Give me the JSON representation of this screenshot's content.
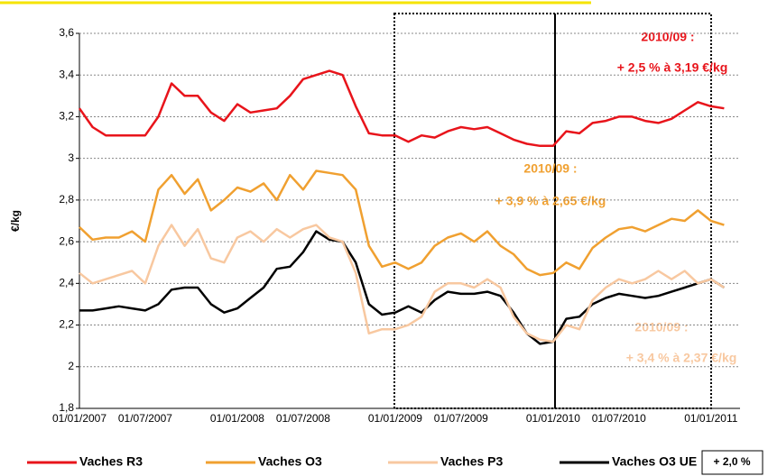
{
  "chart_data": {
    "type": "line",
    "ylabel": "€/kg",
    "categories": [
      "01/01/2007",
      null,
      null,
      null,
      null,
      "01/07/2007",
      null,
      null,
      null,
      null,
      null,
      null,
      "01/01/2008",
      null,
      null,
      null,
      null,
      "01/07/2008",
      null,
      null,
      null,
      null,
      null,
      null,
      "01/01/2009",
      null,
      null,
      null,
      null,
      "01/07/2009",
      null,
      null,
      null,
      null,
      null,
      null,
      "01/01/2010",
      null,
      null,
      null,
      null,
      "01/07/2010",
      null,
      null,
      null,
      null,
      null,
      null,
      "01/01/2011",
      null
    ],
    "series": [
      {
        "name": "Vaches R3",
        "color": "#e8141b",
        "values": [
          3.24,
          3.15,
          3.11,
          3.11,
          3.11,
          3.11,
          3.2,
          3.36,
          3.3,
          3.3,
          3.22,
          3.18,
          3.26,
          3.22,
          3.23,
          3.24,
          3.3,
          3.38,
          3.4,
          3.42,
          3.4,
          3.25,
          3.12,
          3.11,
          3.11,
          3.08,
          3.11,
          3.1,
          3.13,
          3.15,
          3.14,
          3.15,
          3.12,
          3.09,
          3.07,
          3.06,
          3.06,
          3.13,
          3.12,
          3.17,
          3.18,
          3.2,
          3.2,
          3.18,
          3.17,
          3.19,
          3.23,
          3.27,
          3.25,
          3.24
        ]
      },
      {
        "name": "Vaches O3",
        "color": "#f0a030",
        "values": [
          2.67,
          2.61,
          2.62,
          2.62,
          2.65,
          2.6,
          2.85,
          2.92,
          2.83,
          2.9,
          2.75,
          2.8,
          2.86,
          2.84,
          2.88,
          2.8,
          2.92,
          2.85,
          2.94,
          2.93,
          2.92,
          2.85,
          2.58,
          2.48,
          2.5,
          2.47,
          2.5,
          2.58,
          2.62,
          2.64,
          2.6,
          2.65,
          2.58,
          2.54,
          2.47,
          2.44,
          2.45,
          2.5,
          2.47,
          2.57,
          2.62,
          2.66,
          2.67,
          2.65,
          2.68,
          2.71,
          2.7,
          2.75,
          2.7,
          2.68
        ]
      },
      {
        "name": "Vaches P3",
        "color": "#f8c8a0",
        "values": [
          2.45,
          2.4,
          2.42,
          2.44,
          2.46,
          2.4,
          2.58,
          2.68,
          2.58,
          2.66,
          2.52,
          2.5,
          2.62,
          2.65,
          2.6,
          2.66,
          2.62,
          2.66,
          2.68,
          2.62,
          2.6,
          2.45,
          2.16,
          2.18,
          2.18,
          2.2,
          2.24,
          2.36,
          2.4,
          2.4,
          2.38,
          2.42,
          2.38,
          2.24,
          2.16,
          2.13,
          2.12,
          2.2,
          2.18,
          2.32,
          2.38,
          2.42,
          2.4,
          2.42,
          2.46,
          2.42,
          2.46,
          2.4,
          2.42,
          2.38
        ]
      },
      {
        "name": "Vaches O3 UE",
        "color": "#000000",
        "values": [
          2.27,
          2.27,
          2.28,
          2.29,
          2.28,
          2.27,
          2.3,
          2.37,
          2.38,
          2.38,
          2.3,
          2.26,
          2.28,
          2.33,
          2.38,
          2.47,
          2.48,
          2.55,
          2.65,
          2.61,
          2.6,
          2.5,
          2.3,
          2.25,
          2.26,
          2.29,
          2.26,
          2.32,
          2.36,
          2.35,
          2.35,
          2.36,
          2.34,
          2.26,
          2.16,
          2.11,
          2.12,
          2.23,
          2.24,
          2.3,
          2.33,
          2.35,
          2.34,
          2.33,
          2.34,
          2.36,
          2.38,
          2.4,
          2.42,
          2.38
        ]
      }
    ],
    "ylim": [
      1.8,
      3.6
    ],
    "yticks": [
      {
        "value": 1.8,
        "label": "1,8"
      },
      2,
      {
        "value": 2.2,
        "label": "2,2"
      },
      {
        "value": 2.4,
        "label": "2,4"
      },
      {
        "value": 2.6,
        "label": "2,6"
      },
      {
        "value": 2.8,
        "label": "2,8"
      },
      3,
      {
        "value": 3.2,
        "label": "3,2"
      },
      {
        "value": 3.4,
        "label": "3,4"
      },
      {
        "value": 3.6,
        "label": "3,6"
      }
    ],
    "grid": true,
    "annotations": [
      "2010/09 :",
      "+ 2,5 % à 3,19 €/kg",
      "2010/09 :",
      "+ 3,9 % à 2,65 €/kg",
      "2010/09 :",
      "+ 3,4 % à 2,37 €/kg",
      "+ 2,0 %"
    ]
  }
}
